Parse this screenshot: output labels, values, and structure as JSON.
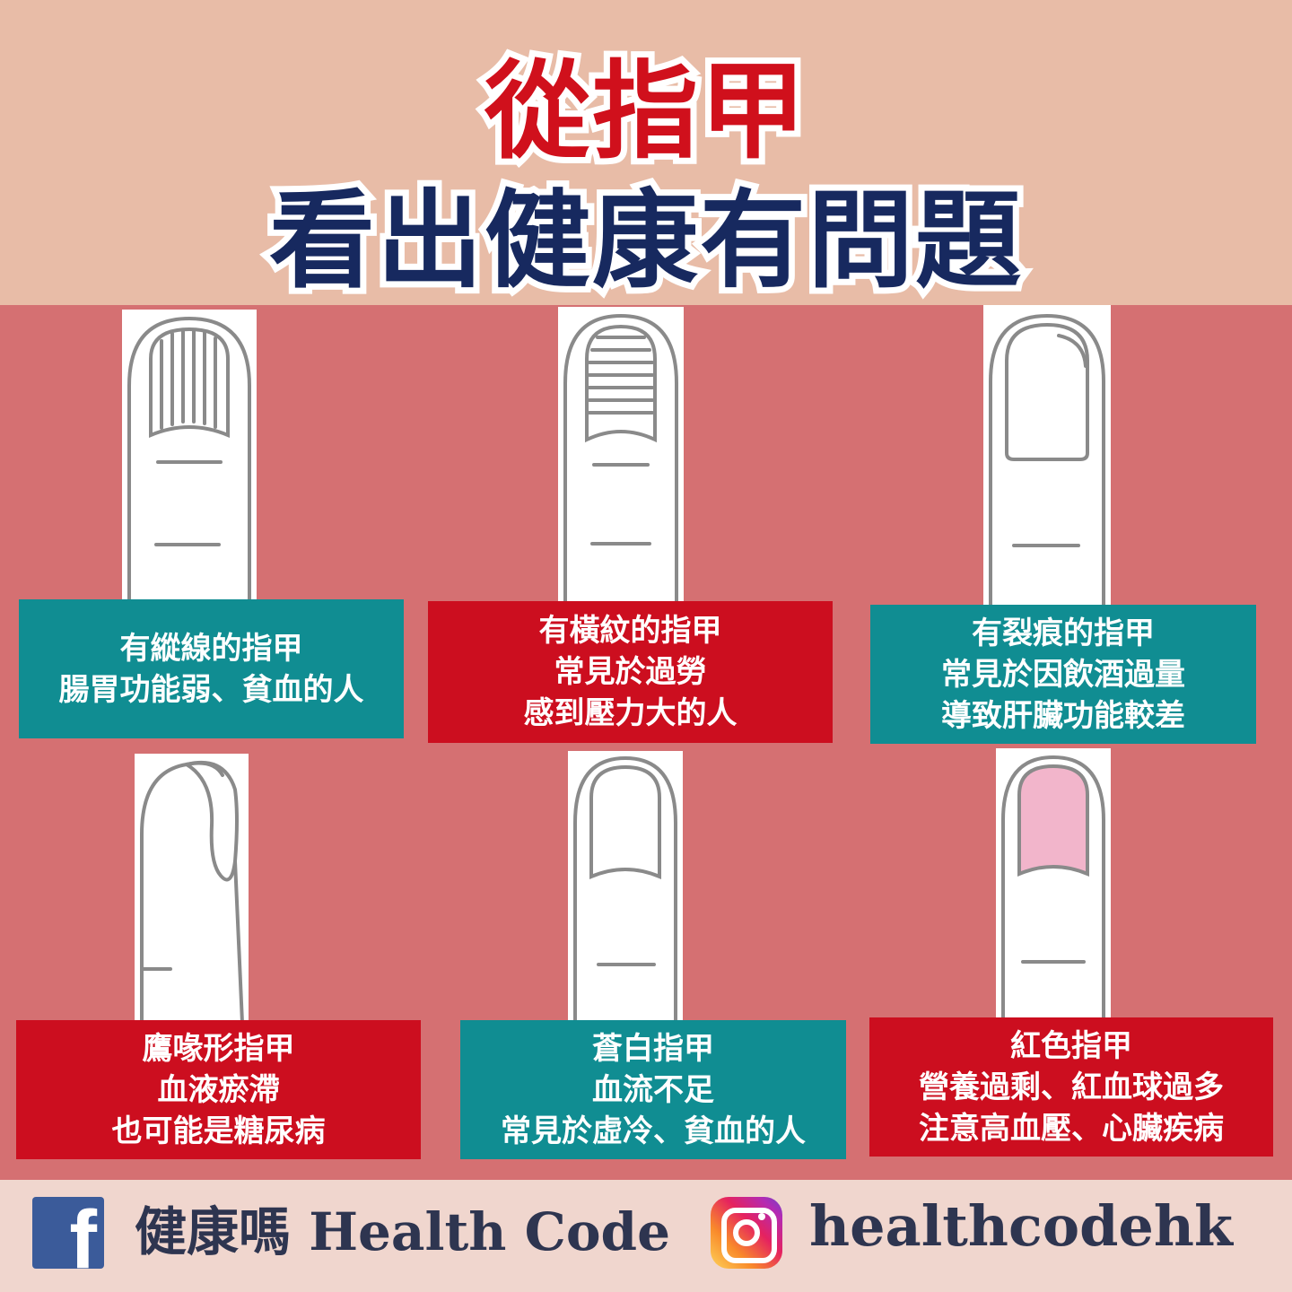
{
  "header": {
    "title_line1": "從指甲",
    "title_line2": "看出健康有問題"
  },
  "cards": [
    {
      "nail_type": "vertical-lines",
      "lines": [
        "有縱線的指甲",
        "腸胃功能弱、貧血的人"
      ]
    },
    {
      "nail_type": "horizontal-lines",
      "lines": [
        "有橫紋的指甲",
        "常見於過勞",
        "感到壓力大的人"
      ]
    },
    {
      "nail_type": "cracked",
      "lines": [
        "有裂痕的指甲",
        "常見於因飲酒過量",
        "導致肝臟功能較差"
      ]
    },
    {
      "nail_type": "hooked",
      "lines": [
        "鷹喙形指甲",
        "血液瘀滯",
        "也可能是糖尿病"
      ]
    },
    {
      "nail_type": "pale",
      "lines": [
        "蒼白指甲",
        "血流不足",
        "常見於虛冷、貧血的人"
      ]
    },
    {
      "nail_type": "red",
      "lines": [
        "紅色指甲",
        "營養過剩、紅血球過多",
        "注意高血壓、心臟疾病"
      ]
    }
  ],
  "footer": {
    "facebook_icon": "facebook-icon",
    "facebook_letter": "f",
    "facebook_name": "健康嗎 Health Code",
    "instagram_icon": "instagram-icon",
    "instagram_handle": "healthcodehk"
  },
  "colors": {
    "title_red": "#d0101c",
    "title_navy": "#17295f",
    "header_bg": "#e8bca7",
    "main_bg": "#d57072",
    "caption_teal": "#108d92",
    "caption_red": "#cc0e1f",
    "red_nail_fill": "#f2b5cb",
    "footer_bg": "#f0d6ce"
  }
}
